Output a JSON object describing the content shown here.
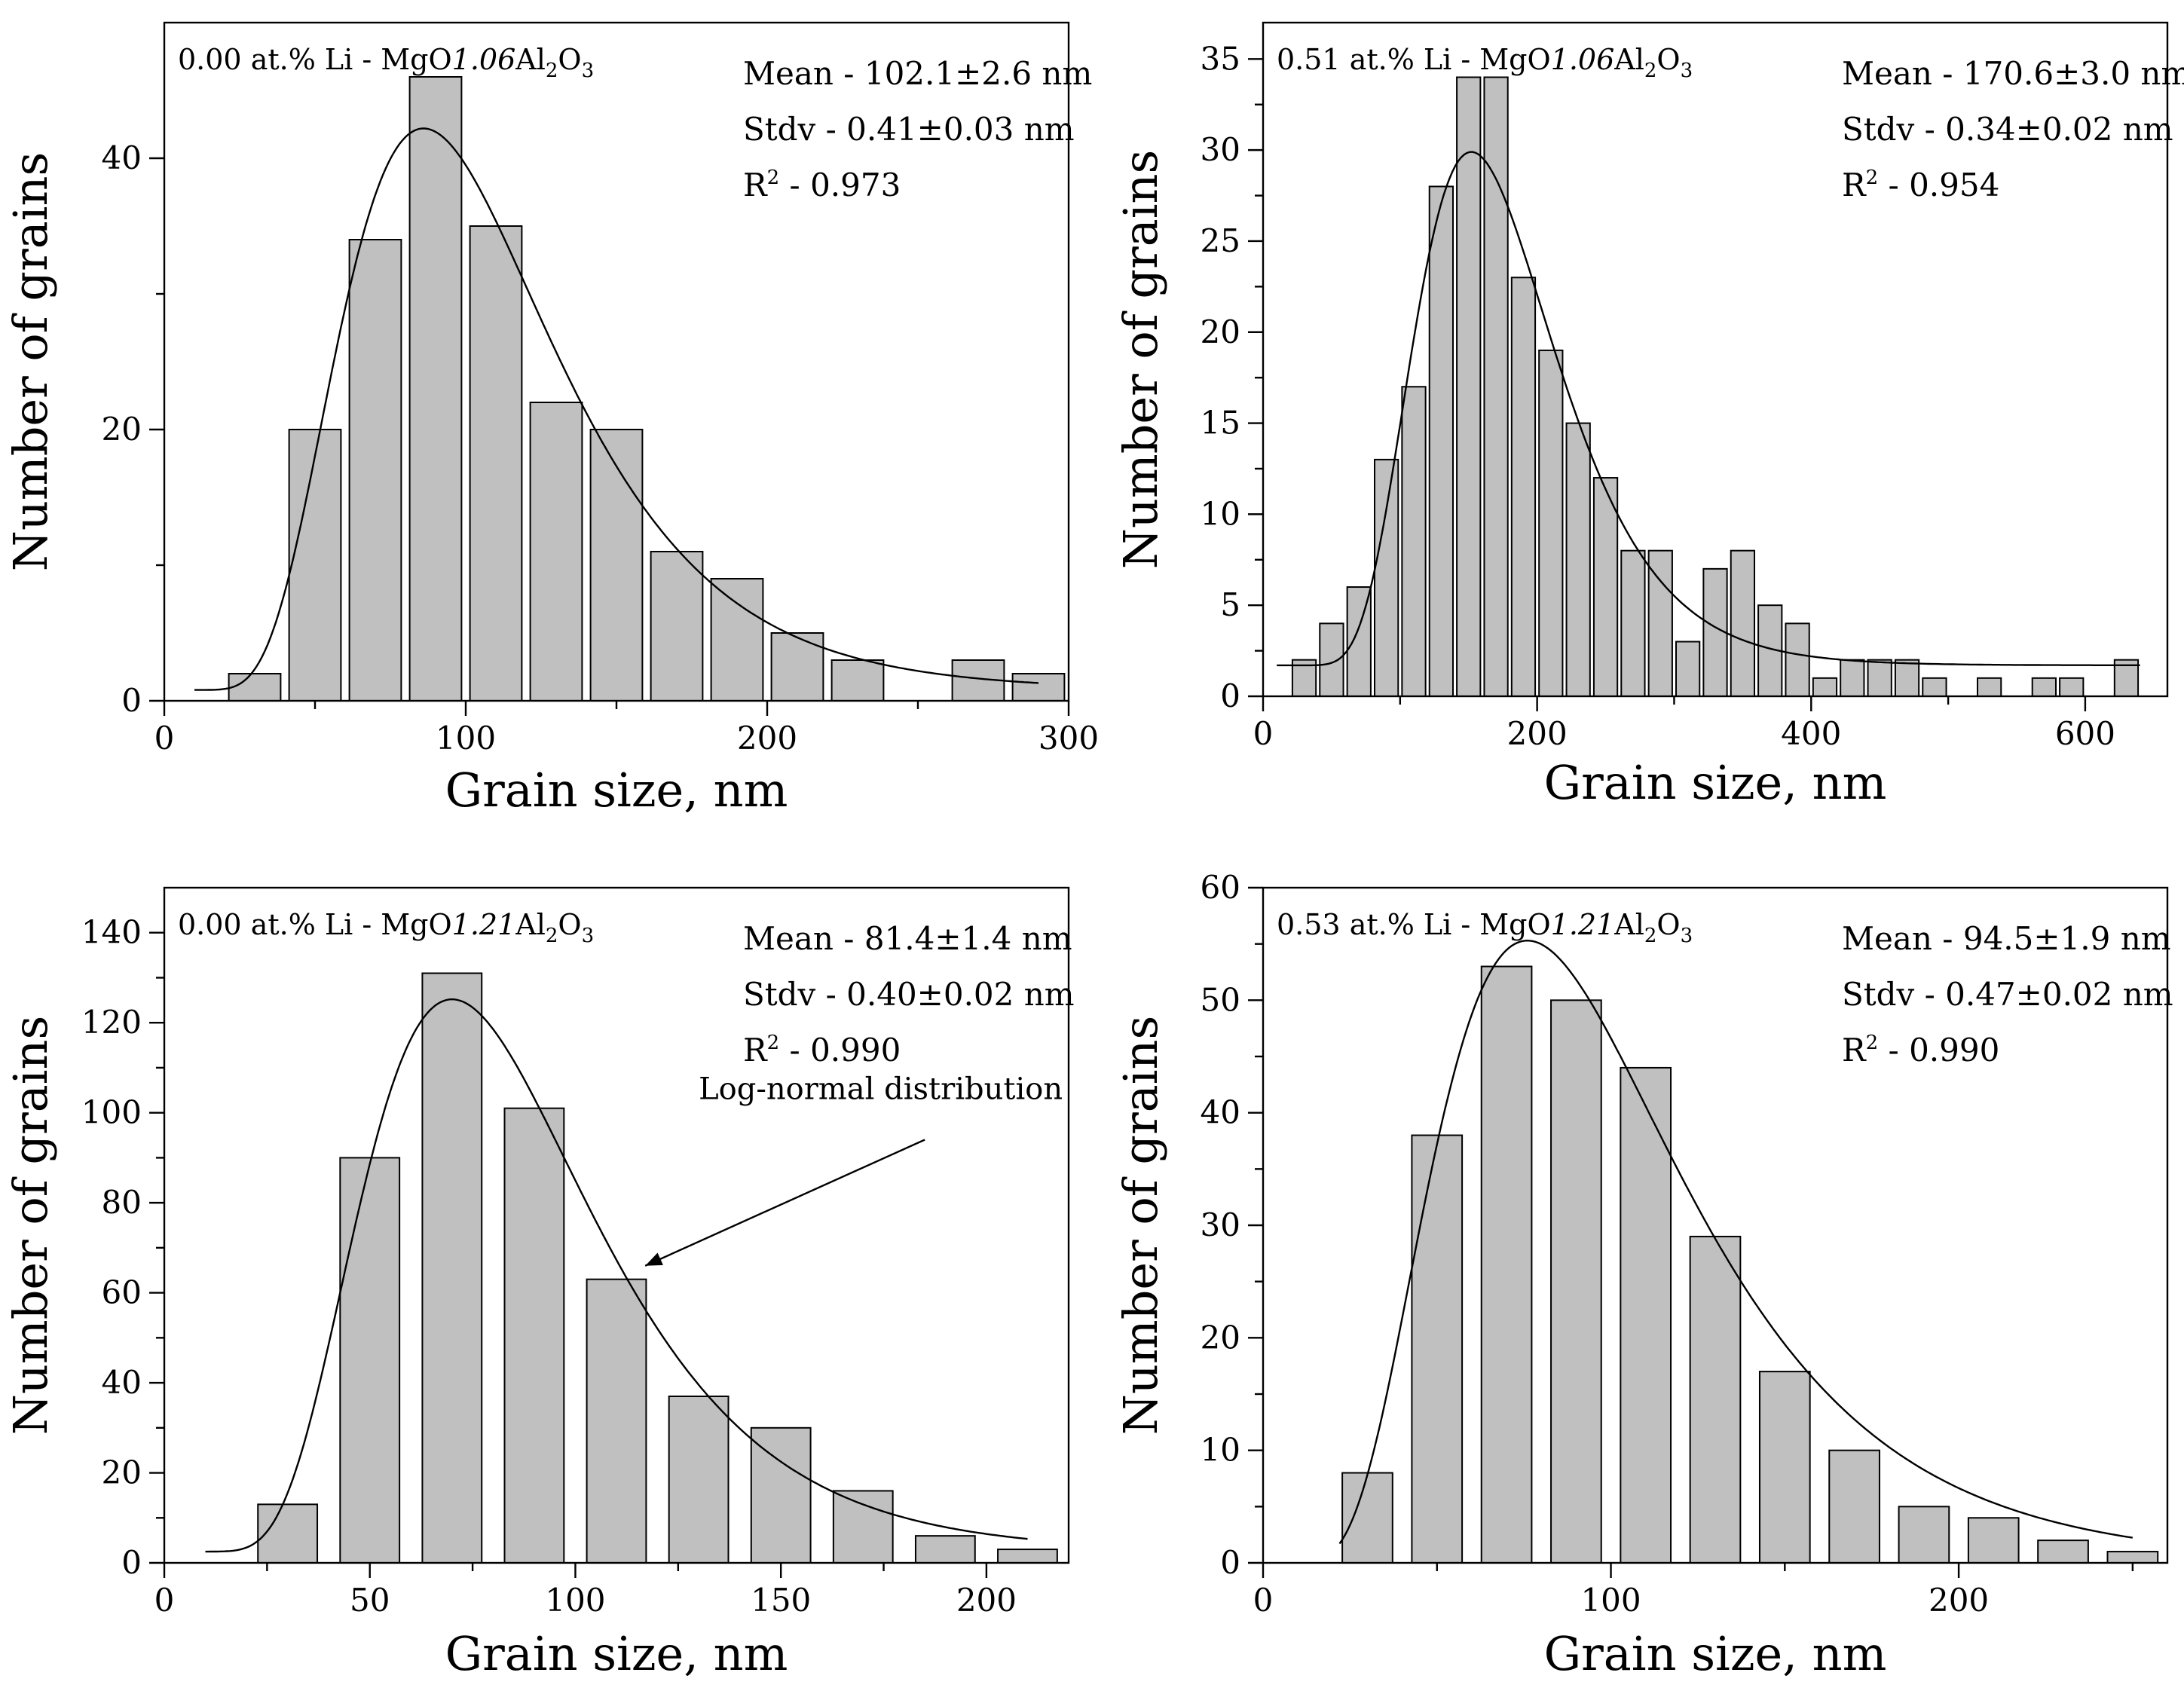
{
  "chart_data": [
    {
      "type": "bar",
      "title_parts": {
        "a": "0.00 at.% Li - MgO",
        "b": "1.06",
        "c": "Al",
        "d": "2",
        "e": "O",
        "f": "3"
      },
      "stats": [
        "Mean - 102.1±2.6 nm",
        "Stdv - 0.41±0.03 nm"
      ],
      "r2": {
        "r": "R",
        "sup": "2",
        "val": " - 0.973"
      },
      "xlabel": "Grain size, nm",
      "ylabel": "Number of grains",
      "xlim": [
        0,
        300
      ],
      "ylim": [
        0,
        50
      ],
      "xticks": [
        0,
        100,
        200,
        300
      ],
      "xtick_labels": [
        "0",
        "100",
        "200",
        "300"
      ],
      "yticks": [
        0,
        20,
        40
      ],
      "yminor": 10,
      "xminor": 50,
      "bin_width": 20,
      "bars": [
        {
          "x": 30,
          "y": 2
        },
        {
          "x": 50,
          "y": 20
        },
        {
          "x": 70,
          "y": 34
        },
        {
          "x": 90,
          "y": 46
        },
        {
          "x": 110,
          "y": 35
        },
        {
          "x": 130,
          "y": 22
        },
        {
          "x": 150,
          "y": 20
        },
        {
          "x": 170,
          "y": 11
        },
        {
          "x": 190,
          "y": 9
        },
        {
          "x": 210,
          "y": 5
        },
        {
          "x": 230,
          "y": 3
        },
        {
          "x": 270,
          "y": 3
        },
        {
          "x": 290,
          "y": 2
        }
      ],
      "fit": {
        "mode": 86,
        "sigma": 0.41,
        "peak": 42.2,
        "y0": 0.8,
        "xmin": 10,
        "xmax": 290
      },
      "annotation": null
    },
    {
      "type": "bar",
      "title_parts": {
        "a": "0.51 at.% Li - MgO",
        "b": "1.06",
        "c": "Al",
        "d": "2",
        "e": "O",
        "f": "3"
      },
      "stats": [
        "Mean - 170.6±3.0 nm",
        "Stdv - 0.34±0.02 nm"
      ],
      "r2": {
        "r": "R",
        "sup": "2",
        "val": " - 0.954"
      },
      "xlabel": "Grain size, nm",
      "ylabel": "Number of grains",
      "xlim": [
        0,
        660
      ],
      "ylim": [
        0,
        37
      ],
      "xticks": [
        0,
        200,
        400,
        600
      ],
      "xtick_labels": [
        "0",
        "200",
        "400",
        "600"
      ],
      "yticks": [
        0,
        5,
        10,
        15,
        20,
        25,
        30,
        35
      ],
      "yminor": 2.5,
      "xminor": 100,
      "bin_width": 20,
      "bars": [
        {
          "x": 30,
          "y": 2
        },
        {
          "x": 50,
          "y": 4
        },
        {
          "x": 70,
          "y": 6
        },
        {
          "x": 90,
          "y": 13
        },
        {
          "x": 110,
          "y": 17
        },
        {
          "x": 130,
          "y": 28
        },
        {
          "x": 150,
          "y": 34
        },
        {
          "x": 170,
          "y": 34
        },
        {
          "x": 190,
          "y": 23
        },
        {
          "x": 210,
          "y": 19
        },
        {
          "x": 230,
          "y": 15
        },
        {
          "x": 250,
          "y": 12
        },
        {
          "x": 270,
          "y": 8
        },
        {
          "x": 290,
          "y": 8
        },
        {
          "x": 310,
          "y": 3
        },
        {
          "x": 330,
          "y": 7
        },
        {
          "x": 350,
          "y": 8
        },
        {
          "x": 370,
          "y": 5
        },
        {
          "x": 390,
          "y": 4
        },
        {
          "x": 410,
          "y": 1
        },
        {
          "x": 430,
          "y": 2
        },
        {
          "x": 450,
          "y": 2
        },
        {
          "x": 470,
          "y": 2
        },
        {
          "x": 490,
          "y": 1
        },
        {
          "x": 530,
          "y": 1
        },
        {
          "x": 570,
          "y": 1
        },
        {
          "x": 590,
          "y": 1
        },
        {
          "x": 630,
          "y": 2
        }
      ],
      "fit": {
        "mode": 152,
        "sigma": 0.34,
        "peak": 29.9,
        "y0": 1.7,
        "xmin": 10,
        "xmax": 640
      },
      "annotation": null
    },
    {
      "type": "bar",
      "title_parts": {
        "a": "0.00 at.% Li - MgO",
        "b": "1.21",
        "c": "Al",
        "d": "2",
        "e": "O",
        "f": "3"
      },
      "stats": [
        "Mean - 81.4±1.4 nm",
        "Stdv - 0.40±0.02 nm"
      ],
      "r2": {
        "r": "R",
        "sup": "2",
        "val": " - 0.990"
      },
      "xlabel": "Grain size, nm",
      "ylabel": "Number of grains",
      "xlim": [
        0,
        220
      ],
      "ylim": [
        0,
        150
      ],
      "xticks": [
        0,
        50,
        100,
        150,
        200
      ],
      "xtick_labels": [
        "0",
        "50",
        "100",
        "150",
        "200"
      ],
      "yticks": [
        0,
        20,
        40,
        60,
        80,
        100,
        120,
        140
      ],
      "yminor": 10,
      "xminor": 25,
      "bin_width": 16.8,
      "bars": [
        {
          "x": 30,
          "y": 13
        },
        {
          "x": 50,
          "y": 90
        },
        {
          "x": 70,
          "y": 131
        },
        {
          "x": 90,
          "y": 101
        },
        {
          "x": 110,
          "y": 63
        },
        {
          "x": 130,
          "y": 37
        },
        {
          "x": 150,
          "y": 30
        },
        {
          "x": 170,
          "y": 16
        },
        {
          "x": 190,
          "y": 6
        },
        {
          "x": 210,
          "y": 3
        }
      ],
      "fit": {
        "mode": 70,
        "sigma": 0.4,
        "peak": 125.2,
        "y0": 2.5,
        "xmin": 10,
        "xmax": 210
      },
      "annotation": {
        "text": "Log-normal distribution",
        "arrow_to": [
          117,
          66
        ]
      }
    },
    {
      "type": "bar",
      "title_parts": {
        "a": "0.53 at.% Li - MgO",
        "b": "1.21",
        "c": "Al",
        "d": "2",
        "e": "O",
        "f": "3"
      },
      "stats": [
        "Mean - 94.5±1.9 nm",
        "Stdv - 0.47±0.02 nm"
      ],
      "r2": {
        "r": "R",
        "sup": "2",
        "val": " - 0.990"
      },
      "xlabel": "Grain size, nm",
      "ylabel": "Number of grains",
      "xlim": [
        0,
        260
      ],
      "ylim": [
        0,
        60
      ],
      "xticks": [
        0,
        100,
        200
      ],
      "xtick_labels": [
        "0",
        "100",
        "200"
      ],
      "yticks": [
        0,
        10,
        20,
        30,
        40,
        50,
        60
      ],
      "yminor": 5,
      "xminor": 50,
      "bin_width": 16.8,
      "bars": [
        {
          "x": 30,
          "y": 8
        },
        {
          "x": 50,
          "y": 38
        },
        {
          "x": 70,
          "y": 53
        },
        {
          "x": 90,
          "y": 50
        },
        {
          "x": 110,
          "y": 44
        },
        {
          "x": 130,
          "y": 29
        },
        {
          "x": 150,
          "y": 17
        },
        {
          "x": 170,
          "y": 10
        },
        {
          "x": 190,
          "y": 5
        },
        {
          "x": 210,
          "y": 4
        },
        {
          "x": 230,
          "y": 2
        },
        {
          "x": 250,
          "y": 1
        }
      ],
      "fit": {
        "mode": 76,
        "sigma": 0.47,
        "peak": 55.3,
        "y0": 0,
        "xmin": 22,
        "xmax": 250
      },
      "annotation": null
    }
  ]
}
